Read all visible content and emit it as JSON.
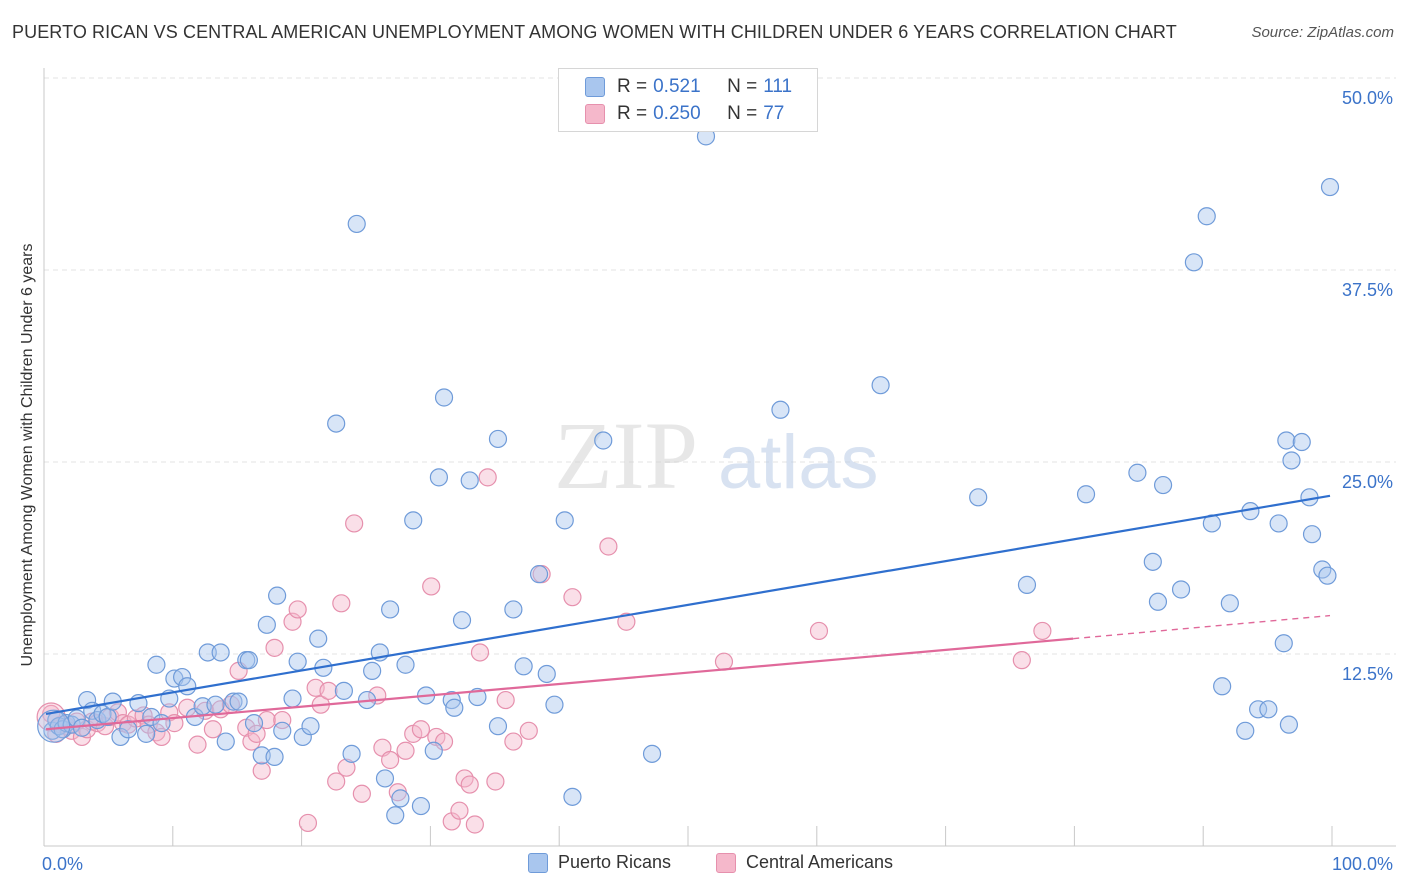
{
  "title": "PUERTO RICAN VS CENTRAL AMERICAN UNEMPLOYMENT AMONG WOMEN WITH CHILDREN UNDER 6 YEARS CORRELATION CHART",
  "source": "Source: ZipAtlas.com",
  "watermark": {
    "zip": "ZIP",
    "atlas": "atlas"
  },
  "legend": {
    "rows": [
      {
        "r_label": "R =",
        "r_value": "0.521",
        "n_label": "N =",
        "n_value": "111"
      },
      {
        "r_label": "R =",
        "r_value": "0.250",
        "n_label": "N =",
        "n_value": "77"
      }
    ]
  },
  "colors": {
    "blue_fill": "#a9c6ee",
    "blue_stroke": "#6f9bd9",
    "blue_line": "#2f6fce",
    "pink_fill": "#f5b8cb",
    "pink_stroke": "#e690ad",
    "pink_line": "#e0699a",
    "axis_text": "#3b73c9",
    "grid": "#e3e3e3"
  },
  "chart_data": {
    "type": "scatter",
    "title": "PUERTO RICAN VS CENTRAL AMERICAN UNEMPLOYMENT AMONG WOMEN WITH CHILDREN UNDER 6 YEARS CORRELATION CHART",
    "xlabel": "",
    "ylabel": "Unemployment Among Women with Children Under 6 years",
    "xlim": [
      0,
      100
    ],
    "ylim": [
      0,
      50
    ],
    "x_tick_labels": [
      "0.0%",
      "100.0%"
    ],
    "y_ticks": [
      12.5,
      25.0,
      37.5,
      50.0
    ],
    "y_tick_labels": [
      "12.5%",
      "25.0%",
      "37.5%",
      "50.0%"
    ],
    "grid": "horizontal dashed",
    "legend_position": "top-center",
    "series": [
      {
        "name": "Puerto Ricans",
        "color": "#a9c6ee",
        "trend": {
          "x": [
            0,
            100
          ],
          "y": [
            8.6,
            22.8
          ]
        },
        "points": [
          [
            0.5,
            7.5
          ],
          [
            0.8,
            8.2
          ],
          [
            1.0,
            7.8
          ],
          [
            1.3,
            7.6
          ],
          [
            1.6,
            8.0
          ],
          [
            2.0,
            7.9
          ],
          [
            2.4,
            8.3
          ],
          [
            2.8,
            7.7
          ],
          [
            3.2,
            9.5
          ],
          [
            3.6,
            8.8
          ],
          [
            4.0,
            8.2
          ],
          [
            4.4,
            8.6
          ],
          [
            4.8,
            8.4
          ],
          [
            5.2,
            9.4
          ],
          [
            5.8,
            7.1
          ],
          [
            6.4,
            7.6
          ],
          [
            7.2,
            9.3
          ],
          [
            7.8,
            7.3
          ],
          [
            8.2,
            8.4
          ],
          [
            8.6,
            11.8
          ],
          [
            9.0,
            8.0
          ],
          [
            9.6,
            9.6
          ],
          [
            10.0,
            10.9
          ],
          [
            10.6,
            11.0
          ],
          [
            11.0,
            10.4
          ],
          [
            11.6,
            8.4
          ],
          [
            12.2,
            9.1
          ],
          [
            12.6,
            12.6
          ],
          [
            13.2,
            9.2
          ],
          [
            13.6,
            12.6
          ],
          [
            14.0,
            6.8
          ],
          [
            14.6,
            9.4
          ],
          [
            15.0,
            9.4
          ],
          [
            15.6,
            12.1
          ],
          [
            15.8,
            12.1
          ],
          [
            16.2,
            8.0
          ],
          [
            16.8,
            5.9
          ],
          [
            17.2,
            14.4
          ],
          [
            17.8,
            5.8
          ],
          [
            18.0,
            16.3
          ],
          [
            18.4,
            7.5
          ],
          [
            19.2,
            9.6
          ],
          [
            19.6,
            12.0
          ],
          [
            20.0,
            7.1
          ],
          [
            20.6,
            7.8
          ],
          [
            21.2,
            13.5
          ],
          [
            21.6,
            11.6
          ],
          [
            22.6,
            27.5
          ],
          [
            23.2,
            10.1
          ],
          [
            23.8,
            6.0
          ],
          [
            24.2,
            40.5
          ],
          [
            25.0,
            9.5
          ],
          [
            25.4,
            11.4
          ],
          [
            26.0,
            12.6
          ],
          [
            26.4,
            4.4
          ],
          [
            26.8,
            15.4
          ],
          [
            27.6,
            3.1
          ],
          [
            27.2,
            2.0
          ],
          [
            28.0,
            11.8
          ],
          [
            28.6,
            21.2
          ],
          [
            29.2,
            2.6
          ],
          [
            29.6,
            9.8
          ],
          [
            30.2,
            6.2
          ],
          [
            30.6,
            24.0
          ],
          [
            31.0,
            29.2
          ],
          [
            31.6,
            9.5
          ],
          [
            31.8,
            9.0
          ],
          [
            32.4,
            14.7
          ],
          [
            33.0,
            23.8
          ],
          [
            33.6,
            9.7
          ],
          [
            35.2,
            26.5
          ],
          [
            35.2,
            7.8
          ],
          [
            36.4,
            15.4
          ],
          [
            37.2,
            11.7
          ],
          [
            38.4,
            17.7
          ],
          [
            39.0,
            11.2
          ],
          [
            39.6,
            9.2
          ],
          [
            40.4,
            21.2
          ],
          [
            41.0,
            3.2
          ],
          [
            43.4,
            26.4
          ],
          [
            47.2,
            6.0
          ],
          [
            51.4,
            46.2
          ],
          [
            57.2,
            28.4
          ],
          [
            65.0,
            30.0
          ],
          [
            72.6,
            22.7
          ],
          [
            76.4,
            17.0
          ],
          [
            81.0,
            22.9
          ],
          [
            85.0,
            24.3
          ],
          [
            86.2,
            18.5
          ],
          [
            86.6,
            15.9
          ],
          [
            87.0,
            23.5
          ],
          [
            88.4,
            16.7
          ],
          [
            89.4,
            38.0
          ],
          [
            90.4,
            41.0
          ],
          [
            90.8,
            21.0
          ],
          [
            91.6,
            10.4
          ],
          [
            92.2,
            15.8
          ],
          [
            93.4,
            7.5
          ],
          [
            93.8,
            21.8
          ],
          [
            94.4,
            8.9
          ],
          [
            95.2,
            8.9
          ],
          [
            96.0,
            21.0
          ],
          [
            96.4,
            13.2
          ],
          [
            96.6,
            26.4
          ],
          [
            96.8,
            7.9
          ],
          [
            97.0,
            25.1
          ],
          [
            97.8,
            26.3
          ],
          [
            98.4,
            22.7
          ],
          [
            98.6,
            20.3
          ],
          [
            99.4,
            18.0
          ],
          [
            99.8,
            17.6
          ],
          [
            100.0,
            42.9
          ]
        ]
      },
      {
        "name": "Central Americans",
        "color": "#f5b8cb",
        "trend": {
          "x": [
            0,
            80
          ],
          "y": [
            7.6,
            13.5
          ]
        },
        "trend_dashed": {
          "x": [
            80,
            100
          ],
          "y": [
            13.5,
            15.0
          ]
        },
        "points": [
          [
            0.4,
            8.6
          ],
          [
            0.8,
            7.3
          ],
          [
            1.2,
            7.9
          ],
          [
            1.6,
            7.8
          ],
          [
            2.0,
            7.5
          ],
          [
            2.4,
            8.1
          ],
          [
            2.8,
            7.1
          ],
          [
            3.2,
            7.6
          ],
          [
            3.6,
            8.1
          ],
          [
            4.0,
            8.0
          ],
          [
            4.6,
            7.8
          ],
          [
            5.0,
            8.4
          ],
          [
            5.6,
            8.7
          ],
          [
            6.0,
            8.0
          ],
          [
            6.4,
            7.9
          ],
          [
            7.0,
            8.3
          ],
          [
            7.6,
            8.5
          ],
          [
            8.0,
            7.9
          ],
          [
            8.6,
            7.4
          ],
          [
            9.0,
            7.1
          ],
          [
            9.6,
            8.7
          ],
          [
            10.0,
            8.0
          ],
          [
            11.0,
            9.0
          ],
          [
            11.8,
            6.6
          ],
          [
            12.4,
            8.8
          ],
          [
            13.0,
            7.6
          ],
          [
            13.6,
            8.9
          ],
          [
            14.4,
            9.2
          ],
          [
            15.0,
            11.4
          ],
          [
            15.6,
            7.7
          ],
          [
            16.0,
            6.8
          ],
          [
            16.4,
            7.3
          ],
          [
            16.8,
            4.9
          ],
          [
            17.2,
            8.2
          ],
          [
            17.8,
            12.9
          ],
          [
            18.4,
            8.2
          ],
          [
            19.2,
            14.6
          ],
          [
            19.6,
            15.4
          ],
          [
            20.4,
            1.5
          ],
          [
            21.0,
            10.3
          ],
          [
            21.4,
            9.2
          ],
          [
            22.0,
            10.1
          ],
          [
            22.6,
            4.2
          ],
          [
            23.0,
            15.8
          ],
          [
            23.4,
            5.1
          ],
          [
            24.0,
            21.0
          ],
          [
            24.6,
            3.4
          ],
          [
            25.8,
            9.8
          ],
          [
            26.2,
            6.4
          ],
          [
            26.8,
            5.6
          ],
          [
            27.4,
            3.5
          ],
          [
            28.0,
            6.2
          ],
          [
            28.6,
            7.3
          ],
          [
            29.2,
            7.6
          ],
          [
            30.0,
            16.9
          ],
          [
            30.4,
            7.1
          ],
          [
            31.0,
            6.8
          ],
          [
            31.6,
            1.6
          ],
          [
            32.2,
            2.3
          ],
          [
            32.6,
            4.4
          ],
          [
            33.0,
            4.0
          ],
          [
            33.4,
            1.4
          ],
          [
            33.8,
            12.6
          ],
          [
            34.4,
            24.0
          ],
          [
            35.0,
            4.2
          ],
          [
            35.8,
            9.5
          ],
          [
            36.4,
            6.8
          ],
          [
            37.6,
            7.5
          ],
          [
            38.6,
            17.7
          ],
          [
            41.0,
            16.2
          ],
          [
            43.8,
            19.5
          ],
          [
            45.2,
            14.6
          ],
          [
            52.8,
            12.0
          ],
          [
            60.2,
            14.0
          ],
          [
            76.0,
            12.1
          ],
          [
            77.6,
            14.0
          ]
        ]
      }
    ]
  },
  "bottom_legend": {
    "series1": "Puerto Ricans",
    "series2": "Central Americans"
  }
}
